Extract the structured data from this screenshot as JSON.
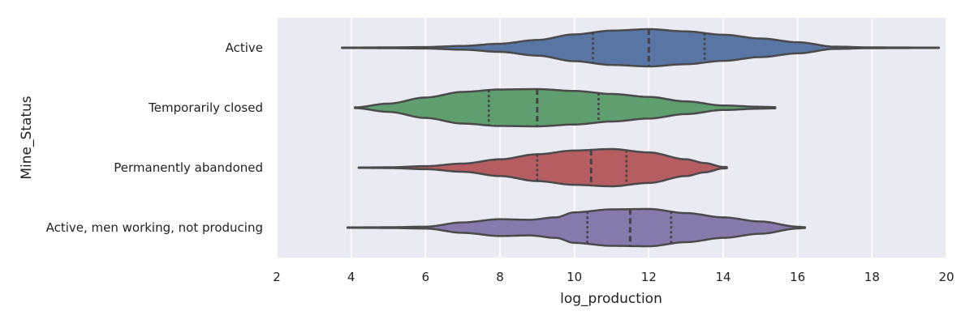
{
  "chart_data": {
    "type": "violin",
    "orientation": "horizontal",
    "xlabel": "log_production",
    "ylabel": "Mine_Status",
    "xlim": [
      2,
      20
    ],
    "xticks": [
      2,
      4,
      6,
      8,
      10,
      12,
      14,
      16,
      18,
      20
    ],
    "grid": true,
    "background": "#EAEAF2",
    "categories": [
      "Active",
      "Temporarily closed",
      "Permanently abandoned",
      "Active, men working, not producing"
    ],
    "series": [
      {
        "category": "Active",
        "color": "#5875A4",
        "min": 3.75,
        "max": 19.8,
        "quartiles": [
          10.5,
          12.0,
          13.5
        ],
        "density": [
          [
            3.75,
            0.01
          ],
          [
            5,
            0.02
          ],
          [
            6,
            0.04
          ],
          [
            7,
            0.1
          ],
          [
            8,
            0.22
          ],
          [
            9,
            0.42
          ],
          [
            10,
            0.72
          ],
          [
            11,
            0.92
          ],
          [
            12,
            1.0
          ],
          [
            13,
            0.88
          ],
          [
            14,
            0.7
          ],
          [
            15,
            0.5
          ],
          [
            16,
            0.3
          ],
          [
            17,
            0.06
          ],
          [
            18,
            0.02
          ],
          [
            19.8,
            0.01
          ]
        ]
      },
      {
        "category": "Temporarily closed",
        "color": "#5F9E6E",
        "min": 4.1,
        "max": 15.4,
        "quartiles": [
          7.7,
          9.0,
          10.65
        ],
        "density": [
          [
            4.1,
            0.02
          ],
          [
            5,
            0.22
          ],
          [
            6,
            0.55
          ],
          [
            7,
            0.85
          ],
          [
            8,
            0.98
          ],
          [
            9,
            1.0
          ],
          [
            10,
            0.9
          ],
          [
            11,
            0.74
          ],
          [
            12,
            0.58
          ],
          [
            13,
            0.34
          ],
          [
            14,
            0.12
          ],
          [
            15,
            0.05
          ],
          [
            15.4,
            0.03
          ]
        ]
      },
      {
        "category": "Permanently abandoned",
        "color": "#B55D60",
        "min": 4.2,
        "max": 14.1,
        "quartiles": [
          9.0,
          10.45,
          11.4
        ],
        "density": [
          [
            4.2,
            0.01
          ],
          [
            5,
            0.02
          ],
          [
            6,
            0.08
          ],
          [
            7,
            0.22
          ],
          [
            8,
            0.45
          ],
          [
            9,
            0.72
          ],
          [
            10,
            0.92
          ],
          [
            11,
            1.0
          ],
          [
            12,
            0.82
          ],
          [
            13,
            0.45
          ],
          [
            13.5,
            0.25
          ],
          [
            14,
            0.04
          ],
          [
            14.1,
            0.03
          ]
        ]
      },
      {
        "category": "Active, men working, not producing",
        "color": "#857AAB",
        "min": 3.9,
        "max": 16.2,
        "quartiles": [
          10.35,
          11.5,
          12.6
        ],
        "density": [
          [
            3.9,
            0.01
          ],
          [
            5,
            0.02
          ],
          [
            6,
            0.05
          ],
          [
            7,
            0.28
          ],
          [
            8,
            0.45
          ],
          [
            8.8,
            0.42
          ],
          [
            9.5,
            0.55
          ],
          [
            10,
            0.82
          ],
          [
            11,
            0.98
          ],
          [
            12,
            1.0
          ],
          [
            13,
            0.78
          ],
          [
            14,
            0.55
          ],
          [
            15,
            0.33
          ],
          [
            16,
            0.05
          ],
          [
            16.2,
            0.02
          ]
        ]
      }
    ]
  }
}
